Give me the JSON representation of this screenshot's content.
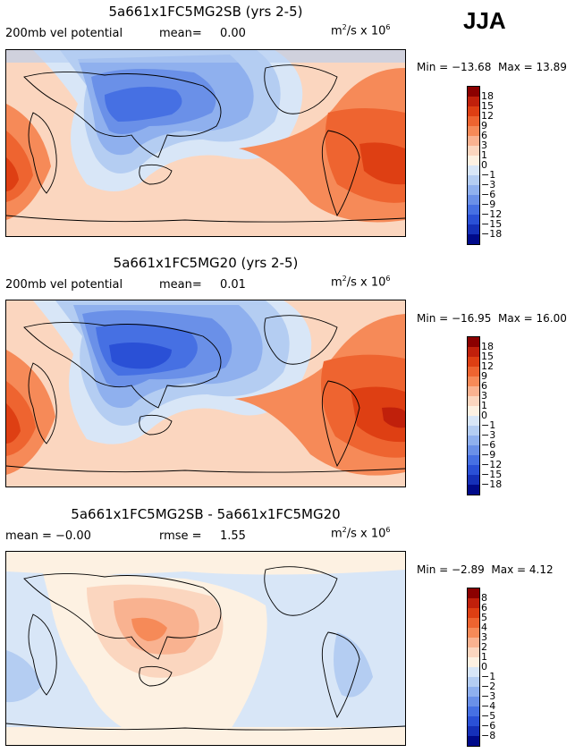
{
  "season": "JJA",
  "panels": [
    {
      "title": "5a661x1FC5MG2SB (yrs 2-5)",
      "left_label": "200mb vel potential",
      "mean_label": "mean=",
      "mean_value": "0.00",
      "units_main": "m",
      "units_sup": "2",
      "units_mid": "/s x 10",
      "units_exp": "6",
      "min_text": "Min = −13.68",
      "max_text": "Max =  13.89",
      "colorbar_labels": [
        "18",
        "15",
        "12",
        "9",
        "6",
        "3",
        "1",
        "0",
        "−1",
        "−3",
        "−6",
        "−9",
        "−12",
        "−15",
        "−18"
      ]
    },
    {
      "title": "5a661x1FC5MG20 (yrs 2-5)",
      "left_label": "200mb vel potential",
      "mean_label": "mean=",
      "mean_value": "0.01",
      "units_main": "m",
      "units_sup": "2",
      "units_mid": "/s x 10",
      "units_exp": "6",
      "min_text": "Min = −16.95",
      "max_text": "Max =  16.00",
      "colorbar_labels": [
        "18",
        "15",
        "12",
        "9",
        "6",
        "3",
        "1",
        "0",
        "−1",
        "−3",
        "−6",
        "−9",
        "−12",
        "−15",
        "−18"
      ]
    },
    {
      "title": "5a661x1FC5MG2SB - 5a661x1FC5MG20",
      "left_label": "mean =  −0.00",
      "mean_label": "rmse =",
      "mean_value": "1.55",
      "units_main": "m",
      "units_sup": "2",
      "units_mid": "/s x 10",
      "units_exp": "6",
      "min_text": "Min = −2.89",
      "max_text": "Max =   4.12",
      "colorbar_labels": [
        "8",
        "6",
        "5",
        "4",
        "3",
        "2",
        "1",
        "0",
        "−1",
        "−2",
        "−3",
        "−4",
        "−5",
        "−6",
        "−8"
      ]
    }
  ],
  "colorbar_colors": [
    "#8b0000",
    "#c0200b",
    "#de3f13",
    "#ee6430",
    "#f68a58",
    "#f9b290",
    "#fbd6bf",
    "#fdf1e2",
    "#d8e6f7",
    "#b4cdf2",
    "#8fb0ee",
    "#6a90e8",
    "#4670e3",
    "#2a50d6",
    "#1530b8",
    "#000a8a"
  ],
  "chart_data": [
    {
      "type": "heatmap",
      "title": "5a661x1FC5MG2SB (yrs 2-5)",
      "variable": "200mb vel potential",
      "units": "m2/s x 10^6",
      "mean": 0.0,
      "min": -13.68,
      "max": 13.89,
      "levels": [
        -18,
        -15,
        -12,
        -9,
        -6,
        -3,
        -1,
        0,
        1,
        3,
        6,
        9,
        12,
        15,
        18
      ]
    },
    {
      "type": "heatmap",
      "title": "5a661x1FC5MG20 (yrs 2-5)",
      "variable": "200mb vel potential",
      "units": "m2/s x 10^6",
      "mean": 0.01,
      "min": -16.95,
      "max": 16.0,
      "levels": [
        -18,
        -15,
        -12,
        -9,
        -6,
        -3,
        -1,
        0,
        1,
        3,
        6,
        9,
        12,
        15,
        18
      ]
    },
    {
      "type": "heatmap",
      "title": "5a661x1FC5MG2SB - 5a661x1FC5MG20",
      "units": "m2/s x 10^6",
      "mean": -0.0,
      "rmse": 1.55,
      "min": -2.89,
      "max": 4.12,
      "levels": [
        -8,
        -6,
        -5,
        -4,
        -3,
        -2,
        -1,
        0,
        1,
        2,
        3,
        4,
        5,
        6,
        8
      ]
    }
  ]
}
